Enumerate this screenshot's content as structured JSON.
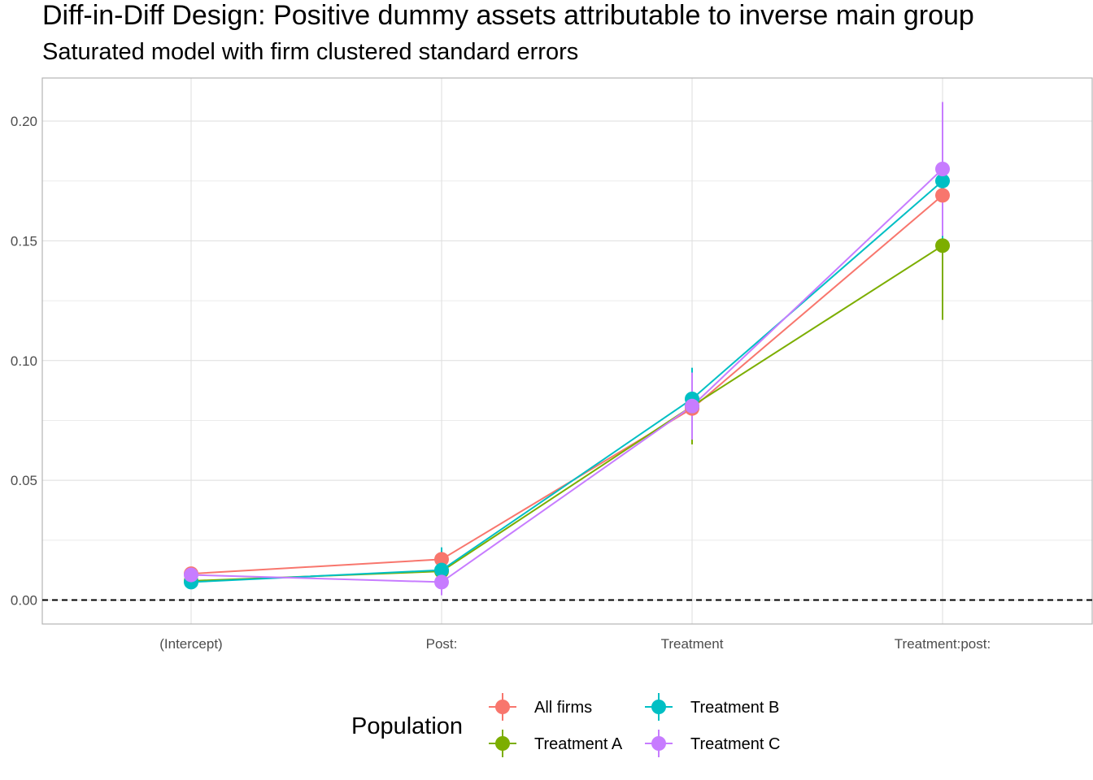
{
  "chart_data": {
    "type": "line",
    "title": "Diff-in-Diff Design: Positive dummy assets attributable to inverse main group",
    "subtitle": "Saturated model with firm clustered standard errors",
    "xlabel": "",
    "ylabel": "",
    "categories": [
      "(Intercept)",
      "Post:",
      "Treatment",
      "Treatment:post:"
    ],
    "ylim": [
      -0.01,
      0.218
    ],
    "yticks": [
      0.0,
      0.05,
      0.1,
      0.15,
      0.2
    ],
    "ytick_labels": [
      "0.00",
      "0.05",
      "0.10",
      "0.15",
      "0.20"
    ],
    "grid": true,
    "reference_line": {
      "y": 0.0,
      "style": "dashed"
    },
    "legend": {
      "title": "Population",
      "position": "bottom"
    },
    "series": [
      {
        "name": "All firms",
        "color": "#F8766D",
        "values": [
          0.011,
          0.017,
          0.08,
          0.169
        ],
        "lower": [
          0.009,
          0.013,
          0.068,
          0.15
        ],
        "upper": [
          0.013,
          0.021,
          0.093,
          0.188
        ]
      },
      {
        "name": "Treatment A",
        "color": "#7CAE00",
        "values": [
          0.008,
          0.012,
          0.081,
          0.148
        ],
        "lower": [
          0.006,
          0.008,
          0.065,
          0.117
        ],
        "upper": [
          0.01,
          0.016,
          0.096,
          0.179
        ]
      },
      {
        "name": "Treatment B",
        "color": "#00BFC4",
        "values": [
          0.0075,
          0.0125,
          0.084,
          0.175
        ],
        "lower": [
          0.005,
          0.006,
          0.07,
          0.15
        ],
        "upper": [
          0.01,
          0.022,
          0.097,
          0.198
        ]
      },
      {
        "name": "Treatment C",
        "color": "#C77CFF",
        "values": [
          0.0105,
          0.0075,
          0.081,
          0.18
        ],
        "lower": [
          0.008,
          0.002,
          0.067,
          0.152
        ],
        "upper": [
          0.013,
          0.013,
          0.095,
          0.208
        ]
      }
    ]
  }
}
